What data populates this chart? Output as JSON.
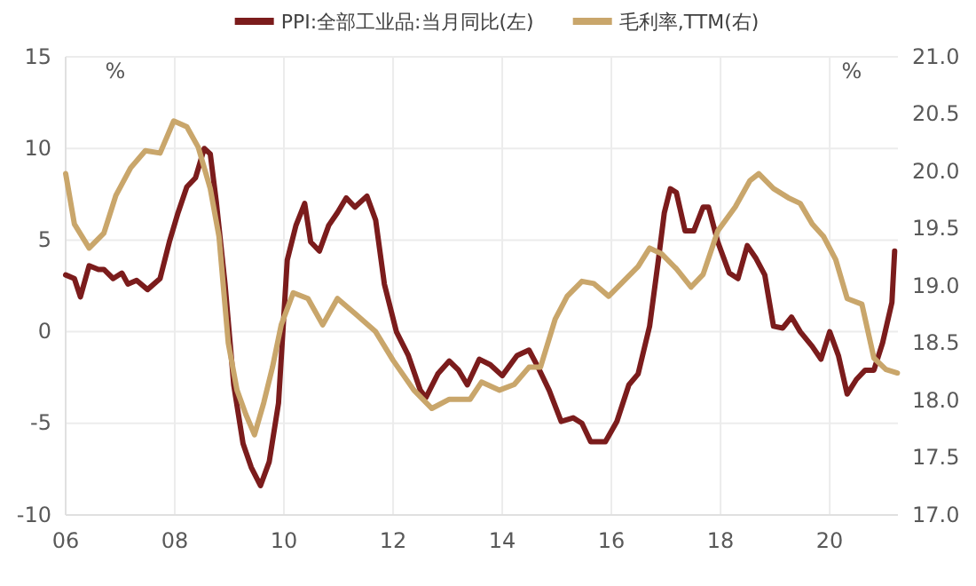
{
  "chart_data": {
    "type": "line",
    "ylabel": "%",
    "y2label": "%",
    "xlim": [
      2006,
      2021.25
    ],
    "xticks": [
      {
        "value": 2006,
        "label": "06"
      },
      {
        "value": 2008,
        "label": "08"
      },
      {
        "value": 2010,
        "label": "10"
      },
      {
        "value": 2012,
        "label": "12"
      },
      {
        "value": 2014,
        "label": "14"
      },
      {
        "value": 2016,
        "label": "16"
      },
      {
        "value": 2018,
        "label": "18"
      },
      {
        "value": 2020,
        "label": "20"
      }
    ],
    "ylim": [
      -10,
      15
    ],
    "yticks": [
      -10,
      -5,
      0,
      5,
      10,
      15
    ],
    "y2lim": [
      17,
      21
    ],
    "y2ticks": [
      {
        "value": 17,
        "label": "17.0"
      },
      {
        "value": 17.5,
        "label": "17.5"
      },
      {
        "value": 18,
        "label": "18.0"
      },
      {
        "value": 18.5,
        "label": "18.5"
      },
      {
        "value": 19,
        "label": "19.0"
      },
      {
        "value": 19.5,
        "label": "19.5"
      },
      {
        "value": 20,
        "label": "20.0"
      },
      {
        "value": 20.5,
        "label": "20.5"
      },
      {
        "value": 21,
        "label": "21.0"
      }
    ],
    "grid": true,
    "legend": "top",
    "line_style": "solid",
    "series": [
      {
        "name": "PPI:全部工业品:当月同比(左)",
        "color": "#7b1c1c",
        "x": [
          2006.0,
          2006.16,
          2006.27,
          2006.43,
          2006.6,
          2006.7,
          2006.87,
          2007.03,
          2007.14,
          2007.3,
          2007.5,
          2007.73,
          2007.9,
          2008.06,
          2008.22,
          2008.38,
          2008.54,
          2008.65,
          2008.76,
          2008.92,
          2009.08,
          2009.25,
          2009.4,
          2009.57,
          2009.73,
          2009.9,
          2010.06,
          2010.22,
          2010.38,
          2010.49,
          2010.65,
          2010.82,
          2010.98,
          2011.14,
          2011.3,
          2011.52,
          2011.68,
          2011.84,
          2012.06,
          2012.28,
          2012.5,
          2012.6,
          2012.82,
          2013.03,
          2013.2,
          2013.36,
          2013.58,
          2013.78,
          2014.0,
          2014.27,
          2014.49,
          2014.65,
          2014.86,
          2015.08,
          2015.3,
          2015.46,
          2015.62,
          2015.89,
          2016.1,
          2016.32,
          2016.49,
          2016.7,
          2016.86,
          2016.97,
          2017.08,
          2017.19,
          2017.35,
          2017.51,
          2017.68,
          2017.78,
          2017.95,
          2018.16,
          2018.32,
          2018.49,
          2018.65,
          2018.81,
          2018.97,
          2019.14,
          2019.3,
          2019.46,
          2019.68,
          2019.84,
          2020.0,
          2020.16,
          2020.32,
          2020.49,
          2020.65,
          2020.81,
          2020.97,
          2021.14,
          2021.19
        ],
        "values": [
          3.1,
          2.9,
          1.9,
          3.6,
          3.4,
          3.4,
          2.9,
          3.2,
          2.6,
          2.8,
          2.3,
          2.9,
          4.9,
          6.5,
          7.9,
          8.4,
          10.0,
          9.7,
          7.1,
          2.6,
          -2.9,
          -6.1,
          -7.4,
          -8.4,
          -7.1,
          -3.9,
          3.9,
          5.8,
          7.0,
          4.9,
          4.4,
          5.8,
          6.5,
          7.3,
          6.8,
          7.4,
          6.1,
          2.6,
          0,
          -1.3,
          -3.2,
          -3.6,
          -2.3,
          -1.6,
          -2.1,
          -2.9,
          -1.5,
          -1.8,
          -2.4,
          -1.3,
          -1.0,
          -1.9,
          -3.2,
          -4.9,
          -4.7,
          -5.0,
          -6.0,
          -6.0,
          -4.9,
          -2.9,
          -2.3,
          0.3,
          3.9,
          6.5,
          7.8,
          7.6,
          5.5,
          5.5,
          6.8,
          6.8,
          4.9,
          3.2,
          2.9,
          4.7,
          4.0,
          3.1,
          0.3,
          0.2,
          0.8,
          0,
          -0.8,
          -1.5,
          0,
          -1.3,
          -3.4,
          -2.6,
          -2.1,
          -2.1,
          -0.6,
          1.6,
          4.4
        ]
      },
      {
        "name": "毛利率,TTM(右)",
        "color": "#c9a66b",
        "axis": "y2",
        "x": [
          2006.0,
          2006.16,
          2006.43,
          2006.7,
          2006.92,
          2007.19,
          2007.46,
          2007.73,
          2007.98,
          2008.22,
          2008.43,
          2008.65,
          2008.81,
          2008.98,
          2009.14,
          2009.3,
          2009.46,
          2009.63,
          2009.79,
          2009.95,
          2010.17,
          2010.44,
          2010.71,
          2010.98,
          2011.3,
          2011.68,
          2012.0,
          2012.38,
          2012.71,
          2013.03,
          2013.41,
          2013.62,
          2013.95,
          2014.22,
          2014.49,
          2014.7,
          2014.97,
          2015.19,
          2015.46,
          2015.68,
          2015.95,
          2016.22,
          2016.49,
          2016.7,
          2016.92,
          2017.19,
          2017.46,
          2017.68,
          2017.95,
          2018.27,
          2018.54,
          2018.7,
          2018.97,
          2019.24,
          2019.46,
          2019.68,
          2019.89,
          2020.11,
          2020.32,
          2020.59,
          2020.81,
          2021.03,
          2021.24
        ],
        "values": [
          19.98,
          19.54,
          19.33,
          19.46,
          19.79,
          20.03,
          20.18,
          20.16,
          20.44,
          20.39,
          20.21,
          19.85,
          19.43,
          18.5,
          18.09,
          17.88,
          17.7,
          17.98,
          18.29,
          18.66,
          18.94,
          18.89,
          18.66,
          18.89,
          18.76,
          18.6,
          18.35,
          18.09,
          17.93,
          18.01,
          18.01,
          18.16,
          18.09,
          18.14,
          18.29,
          18.29,
          18.71,
          18.91,
          19.04,
          19.02,
          18.91,
          19.04,
          19.17,
          19.33,
          19.28,
          19.15,
          18.99,
          19.1,
          19.48,
          19.69,
          19.92,
          19.98,
          19.85,
          19.77,
          19.72,
          19.54,
          19.43,
          19.23,
          18.89,
          18.84,
          18.37,
          18.27,
          18.24
        ]
      }
    ]
  }
}
